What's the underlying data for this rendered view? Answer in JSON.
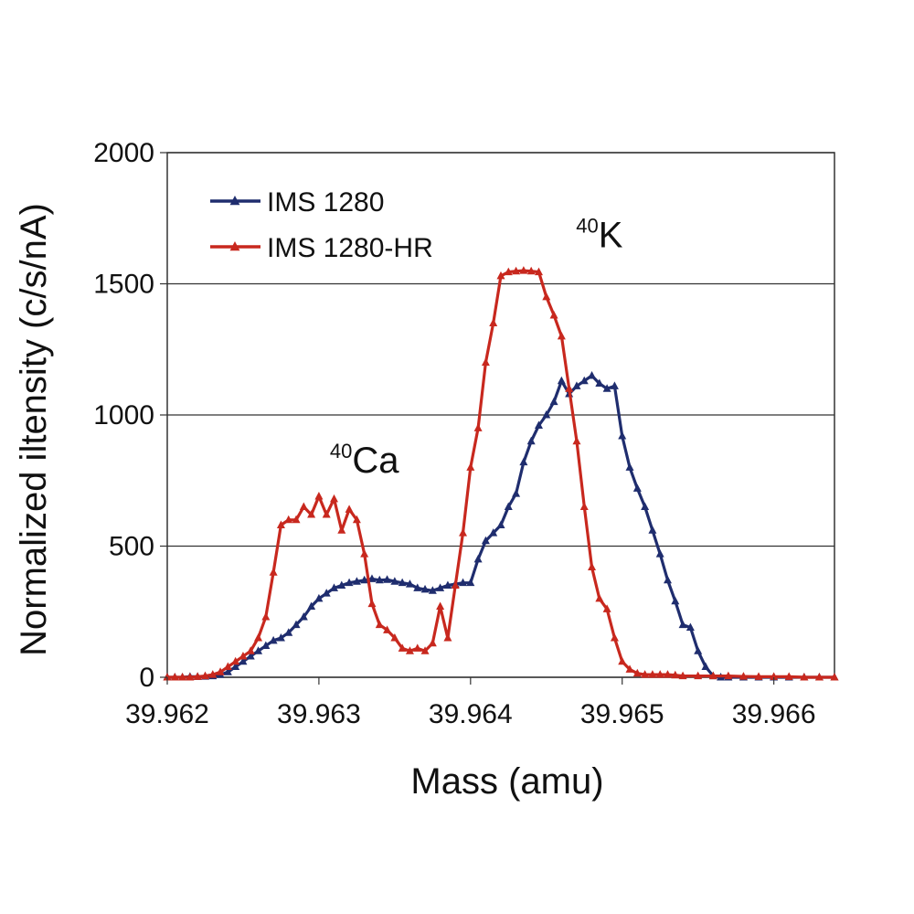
{
  "chart_data": {
    "type": "line",
    "xlabel": "Mass (amu)",
    "ylabel": "Normalized iltensity (c/s/nA)",
    "xlim": [
      39.962,
      39.9664
    ],
    "ylim": [
      0,
      2000
    ],
    "x_ticks": [
      "39.962",
      "39.963",
      "39.964",
      "39.965",
      "39.966"
    ],
    "y_ticks": [
      "0",
      "500",
      "1000",
      "1500",
      "2000"
    ],
    "grid": "horizontal",
    "legend_position": "top-left",
    "annotations": [
      {
        "sup": "40",
        "text": "Ca",
        "x": 39.9633,
        "y": 780
      },
      {
        "sup": "40",
        "text": "K",
        "x": 39.96485,
        "y": 1640
      }
    ],
    "series": [
      {
        "name": "IMS 1280",
        "color": "#1f2d6e",
        "points": [
          [
            39.962,
            0
          ],
          [
            39.96205,
            0
          ],
          [
            39.9621,
            0
          ],
          [
            39.96215,
            2
          ],
          [
            39.9622,
            2
          ],
          [
            39.96225,
            3
          ],
          [
            39.9623,
            5
          ],
          [
            39.96235,
            10
          ],
          [
            39.9624,
            20
          ],
          [
            39.96245,
            40
          ],
          [
            39.9625,
            60
          ],
          [
            39.96255,
            80
          ],
          [
            39.9626,
            100
          ],
          [
            39.96265,
            120
          ],
          [
            39.9627,
            140
          ],
          [
            39.96275,
            150
          ],
          [
            39.9628,
            170
          ],
          [
            39.96285,
            200
          ],
          [
            39.9629,
            230
          ],
          [
            39.96295,
            270
          ],
          [
            39.963,
            300
          ],
          [
            39.96305,
            320
          ],
          [
            39.9631,
            340
          ],
          [
            39.96315,
            350
          ],
          [
            39.9632,
            360
          ],
          [
            39.96325,
            365
          ],
          [
            39.9633,
            370
          ],
          [
            39.96335,
            375
          ],
          [
            39.9634,
            370
          ],
          [
            39.96345,
            372
          ],
          [
            39.9635,
            365
          ],
          [
            39.96355,
            360
          ],
          [
            39.9636,
            355
          ],
          [
            39.96365,
            340
          ],
          [
            39.9637,
            335
          ],
          [
            39.96375,
            330
          ],
          [
            39.9638,
            340
          ],
          [
            39.96385,
            350
          ],
          [
            39.9639,
            355
          ],
          [
            39.96395,
            360
          ],
          [
            39.964,
            360
          ],
          [
            39.96405,
            450
          ],
          [
            39.9641,
            520
          ],
          [
            39.96415,
            550
          ],
          [
            39.9642,
            580
          ],
          [
            39.96425,
            650
          ],
          [
            39.9643,
            700
          ],
          [
            39.96435,
            820
          ],
          [
            39.9644,
            900
          ],
          [
            39.96445,
            960
          ],
          [
            39.9645,
            1000
          ],
          [
            39.96455,
            1050
          ],
          [
            39.9646,
            1130
          ],
          [
            39.96465,
            1080
          ],
          [
            39.9647,
            1110
          ],
          [
            39.96475,
            1130
          ],
          [
            39.9648,
            1150
          ],
          [
            39.96485,
            1120
          ],
          [
            39.9649,
            1100
          ],
          [
            39.96495,
            1110
          ],
          [
            39.965,
            920
          ],
          [
            39.96505,
            800
          ],
          [
            39.9651,
            720
          ],
          [
            39.96515,
            650
          ],
          [
            39.9652,
            560
          ],
          [
            39.96525,
            470
          ],
          [
            39.9653,
            370
          ],
          [
            39.96535,
            290
          ],
          [
            39.9654,
            200
          ],
          [
            39.96545,
            190
          ],
          [
            39.9655,
            100
          ],
          [
            39.96555,
            40
          ],
          [
            39.9656,
            5
          ],
          [
            39.96565,
            0
          ],
          [
            39.9657,
            0
          ],
          [
            39.9658,
            0
          ],
          [
            39.9659,
            0
          ],
          [
            39.966,
            0
          ],
          [
            39.9661,
            0
          ],
          [
            39.9662,
            0
          ],
          [
            39.9663,
            0
          ],
          [
            39.9664,
            0
          ]
        ]
      },
      {
        "name": "IMS 1280-HR",
        "color": "#c8281e",
        "points": [
          [
            39.962,
            0
          ],
          [
            39.96205,
            0
          ],
          [
            39.9621,
            0
          ],
          [
            39.96215,
            0
          ],
          [
            39.9622,
            2
          ],
          [
            39.96225,
            5
          ],
          [
            39.9623,
            10
          ],
          [
            39.96235,
            20
          ],
          [
            39.9624,
            40
          ],
          [
            39.96245,
            60
          ],
          [
            39.9625,
            80
          ],
          [
            39.96255,
            100
          ],
          [
            39.9626,
            150
          ],
          [
            39.96265,
            230
          ],
          [
            39.9627,
            400
          ],
          [
            39.96275,
            580
          ],
          [
            39.9628,
            600
          ],
          [
            39.96285,
            600
          ],
          [
            39.9629,
            650
          ],
          [
            39.96295,
            620
          ],
          [
            39.963,
            690
          ],
          [
            39.96305,
            620
          ],
          [
            39.9631,
            680
          ],
          [
            39.96315,
            560
          ],
          [
            39.9632,
            640
          ],
          [
            39.96325,
            600
          ],
          [
            39.9633,
            470
          ],
          [
            39.96335,
            280
          ],
          [
            39.9634,
            200
          ],
          [
            39.96345,
            180
          ],
          [
            39.9635,
            150
          ],
          [
            39.96355,
            110
          ],
          [
            39.9636,
            100
          ],
          [
            39.96365,
            110
          ],
          [
            39.9637,
            100
          ],
          [
            39.96375,
            130
          ],
          [
            39.9638,
            270
          ],
          [
            39.96385,
            150
          ],
          [
            39.9639,
            350
          ],
          [
            39.96395,
            550
          ],
          [
            39.964,
            800
          ],
          [
            39.96405,
            950
          ],
          [
            39.9641,
            1200
          ],
          [
            39.96415,
            1350
          ],
          [
            39.9642,
            1530
          ],
          [
            39.96425,
            1545
          ],
          [
            39.9643,
            1548
          ],
          [
            39.96435,
            1550
          ],
          [
            39.9644,
            1548
          ],
          [
            39.96445,
            1545
          ],
          [
            39.9645,
            1450
          ],
          [
            39.96455,
            1380
          ],
          [
            39.9646,
            1300
          ],
          [
            39.96465,
            1100
          ],
          [
            39.9647,
            900
          ],
          [
            39.96475,
            650
          ],
          [
            39.9648,
            420
          ],
          [
            39.96485,
            300
          ],
          [
            39.9649,
            260
          ],
          [
            39.96495,
            150
          ],
          [
            39.965,
            60
          ],
          [
            39.96505,
            30
          ],
          [
            39.9651,
            15
          ],
          [
            39.96515,
            10
          ],
          [
            39.9652,
            10
          ],
          [
            39.96525,
            10
          ],
          [
            39.9653,
            10
          ],
          [
            39.96535,
            8
          ],
          [
            39.9654,
            5
          ],
          [
            39.9655,
            5
          ],
          [
            39.9656,
            5
          ],
          [
            39.9657,
            5
          ],
          [
            39.9658,
            3
          ],
          [
            39.9659,
            2
          ],
          [
            39.966,
            2
          ],
          [
            39.9661,
            2
          ],
          [
            39.9662,
            0
          ],
          [
            39.9663,
            0
          ],
          [
            39.9664,
            0
          ]
        ]
      }
    ]
  }
}
